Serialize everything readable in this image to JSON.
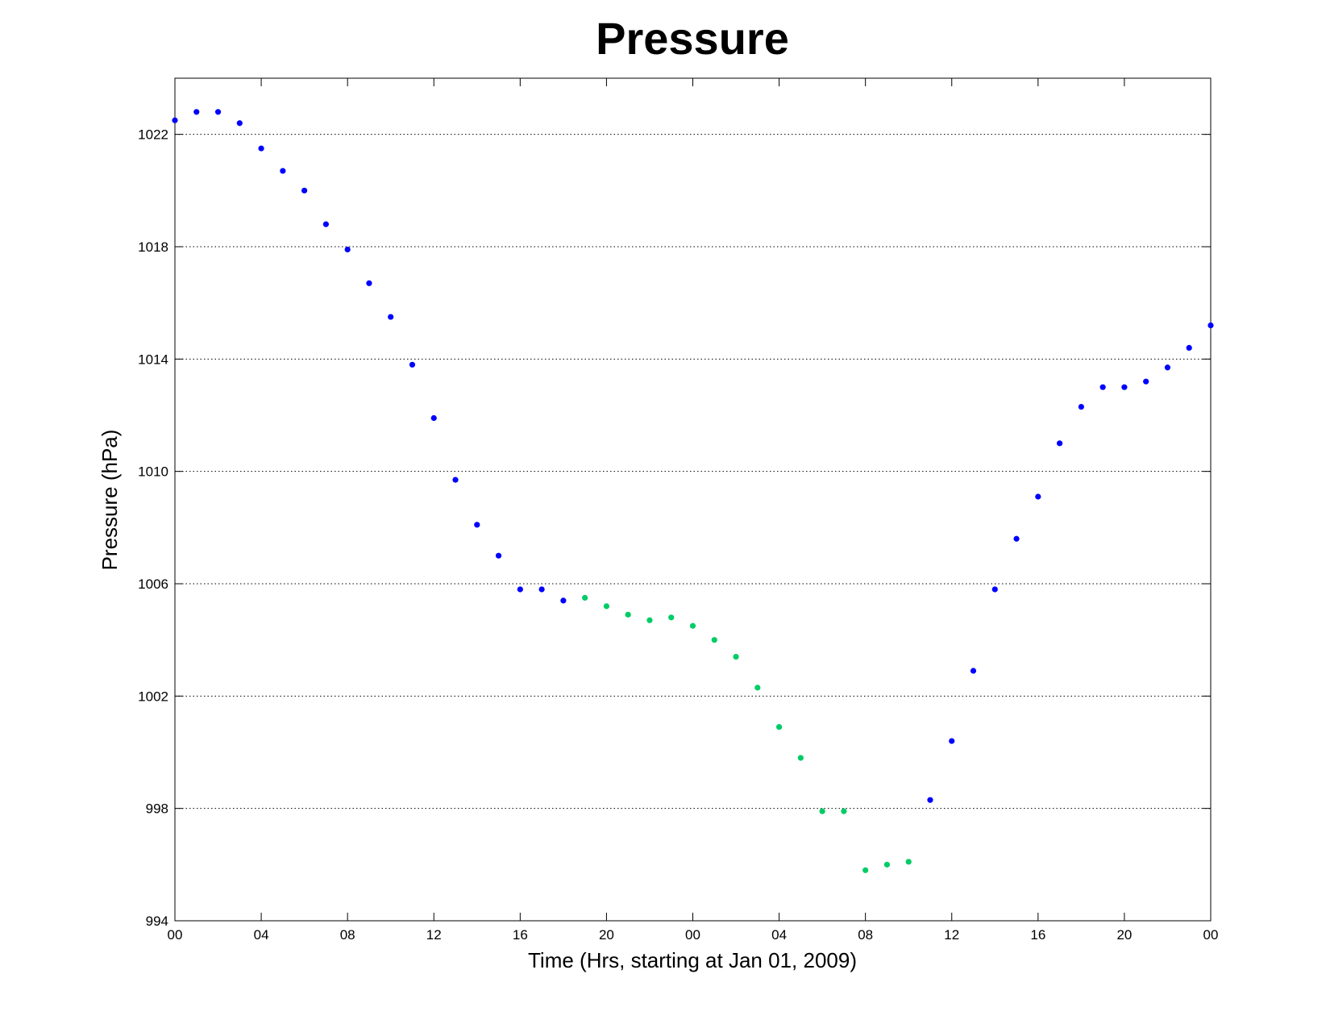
{
  "chart_data": {
    "type": "scatter",
    "title": "Pressure",
    "xlabel": "Time (Hrs, starting at Jan 01, 2009)",
    "ylabel": "Pressure (hPa)",
    "xlim": [
      0,
      48
    ],
    "ylim": [
      994,
      1024
    ],
    "x_ticks": [
      0,
      4,
      8,
      12,
      16,
      20,
      24,
      28,
      32,
      36,
      40,
      44,
      48
    ],
    "x_tick_labels": [
      "00",
      "04",
      "08",
      "12",
      "16",
      "20",
      "00",
      "04",
      "08",
      "12",
      "16",
      "20",
      "00"
    ],
    "y_ticks": [
      994,
      998,
      1002,
      1006,
      1010,
      1014,
      1018,
      1022
    ],
    "y_tick_labels": [
      "994",
      "998",
      "1002",
      "1006",
      "1010",
      "1014",
      "1018",
      "1022"
    ],
    "grid": "y-dotted",
    "series": [
      {
        "color": "#0000ff",
        "x": [
          0,
          1,
          2,
          3,
          4,
          5,
          6,
          7,
          8,
          9,
          10,
          11,
          12,
          13,
          14,
          15,
          16,
          17,
          18
        ],
        "values": [
          1022.5,
          1022.8,
          1022.8,
          1022.4,
          1021.5,
          1020.7,
          1020.0,
          1018.8,
          1017.9,
          1016.7,
          1015.5,
          1013.8,
          1011.9,
          1009.7,
          1008.1,
          1007.0,
          1005.8,
          1005.8,
          1005.4
        ]
      },
      {
        "color": "#00cc66",
        "x": [
          19,
          20,
          21,
          22,
          23,
          24,
          25,
          26,
          27,
          28,
          29,
          30,
          31,
          32,
          33,
          34
        ],
        "values": [
          1005.5,
          1005.2,
          1004.9,
          1004.7,
          1004.8,
          1004.5,
          1004.0,
          1003.4,
          1002.3,
          1000.9,
          999.8,
          997.9,
          997.9,
          995.8,
          996.0,
          996.1
        ]
      },
      {
        "color": "#0000ff",
        "x": [
          35,
          36,
          37,
          38,
          39,
          40,
          41,
          42,
          43,
          44,
          45,
          46,
          47,
          48
        ],
        "values": [
          998.3,
          1000.4,
          1002.9,
          1005.8,
          1007.6,
          1009.1,
          1011.0,
          1012.3,
          1013.0,
          1013.0,
          1013.2,
          1013.7,
          1014.4,
          1015.2
        ]
      }
    ]
  }
}
